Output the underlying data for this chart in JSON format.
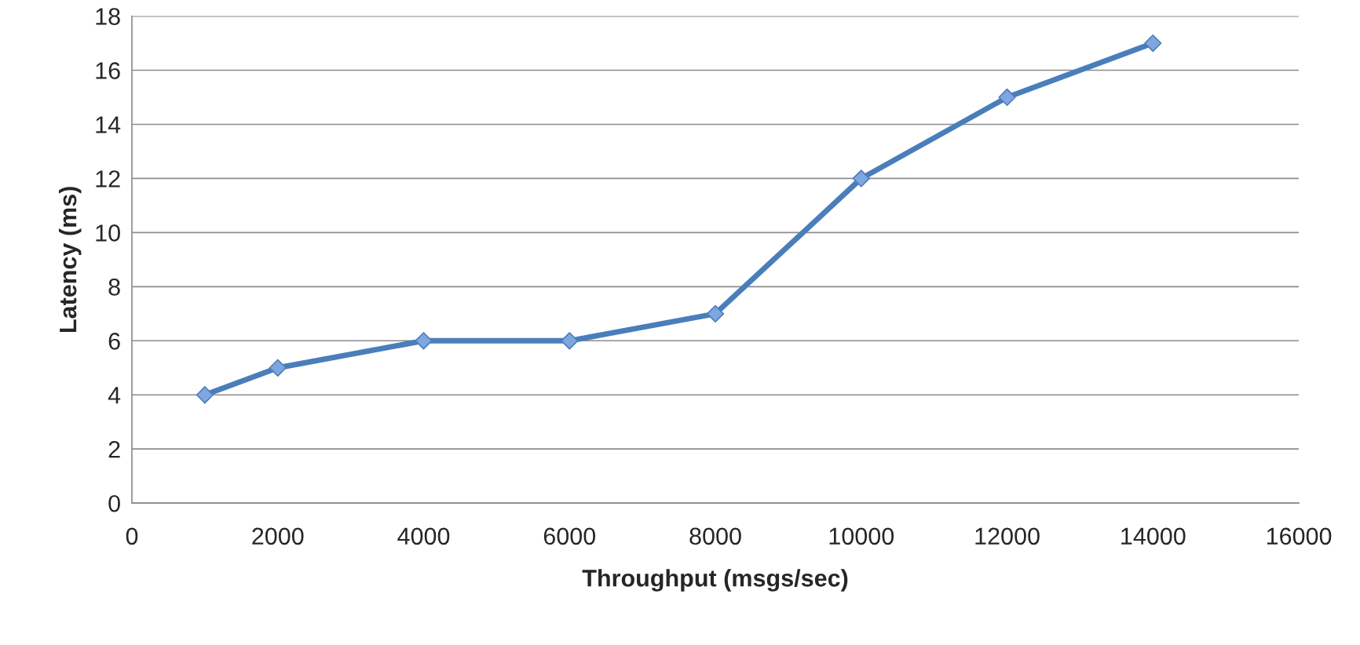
{
  "chart_data": {
    "type": "line",
    "xlabel": "Throughput (msgs/sec)",
    "ylabel": "Latency (ms)",
    "x": [
      1000,
      2000,
      4000,
      6000,
      8000,
      10000,
      12000,
      14000
    ],
    "series": [
      {
        "color": "#4a7ebb",
        "values": [
          4,
          5,
          6,
          6,
          7,
          12,
          15,
          17
        ]
      }
    ],
    "xlim": [
      0,
      16000
    ],
    "xticks": [
      0,
      2000,
      4000,
      6000,
      8000,
      10000,
      12000,
      14000,
      16000
    ],
    "ylim": [
      0,
      18
    ],
    "yticks": [
      0,
      2,
      4,
      6,
      8,
      10,
      12,
      14,
      16,
      18
    ],
    "grid": "y",
    "marker": "diamond",
    "line_style": "solid"
  }
}
